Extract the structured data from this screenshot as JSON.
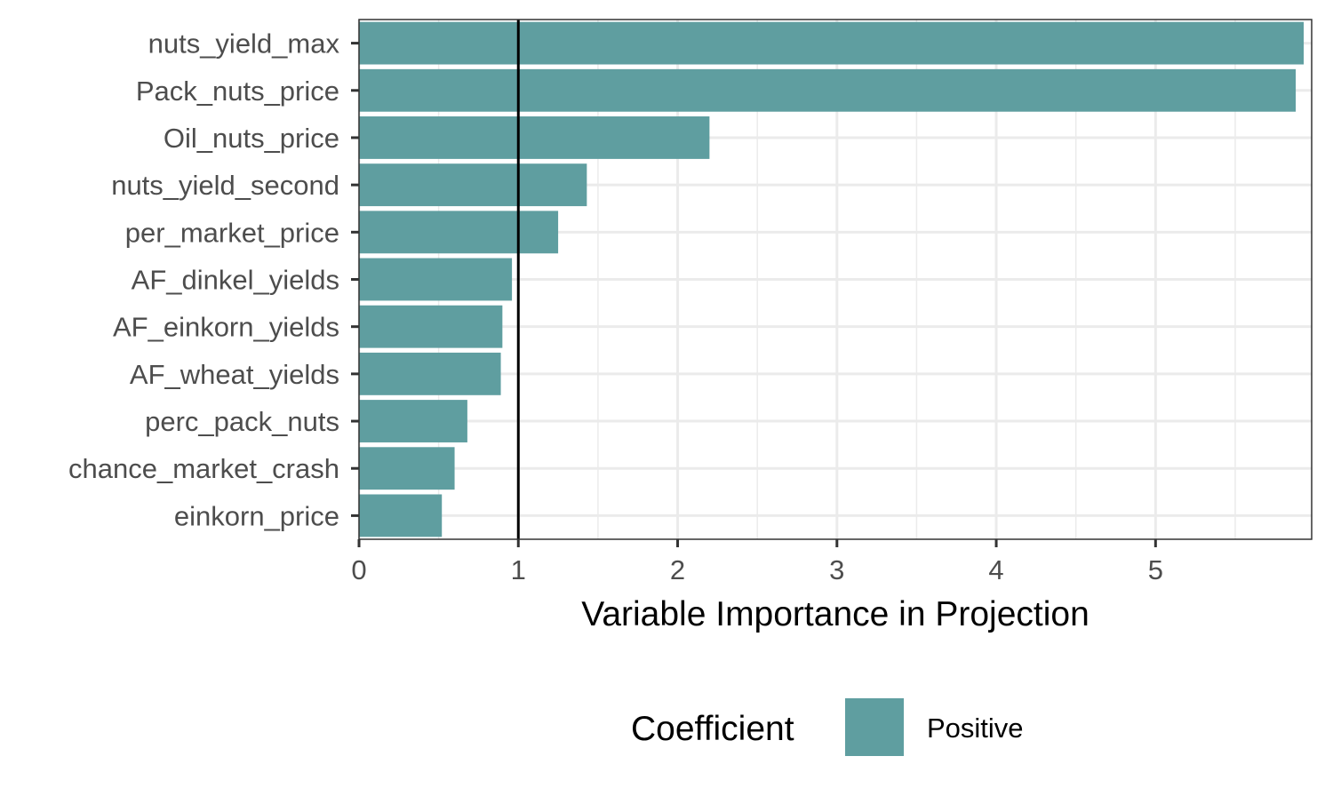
{
  "chart_data": {
    "type": "bar",
    "orientation": "horizontal",
    "categories": [
      "nuts_yield_max",
      "Pack_nuts_price",
      "Oil_nuts_price",
      "nuts_yield_second",
      "per_market_price",
      "AF_dinkel_yields",
      "AF_einkorn_yields",
      "AF_wheat_yields",
      "perc_pack_nuts",
      "chance_market_crash",
      "einkorn_price"
    ],
    "series": [
      {
        "name": "Positive",
        "values": [
          5.93,
          5.88,
          2.2,
          1.43,
          1.25,
          0.96,
          0.9,
          0.89,
          0.68,
          0.6,
          0.52
        ]
      }
    ],
    "xlim": [
      0,
      5.98
    ],
    "x_ticks": [
      "0",
      "1",
      "2",
      "3",
      "4",
      "5"
    ],
    "xlabel": "Variable Importance in Projection",
    "ylabel": "",
    "reference_line": 1,
    "grid": true,
    "legend": {
      "title": "Coefficient",
      "entries": [
        "Positive"
      ],
      "placement": "bottom"
    },
    "colors": {
      "bar": "#5f9ea0",
      "grid": "#ebebeb",
      "reference_line": "#000000"
    }
  }
}
